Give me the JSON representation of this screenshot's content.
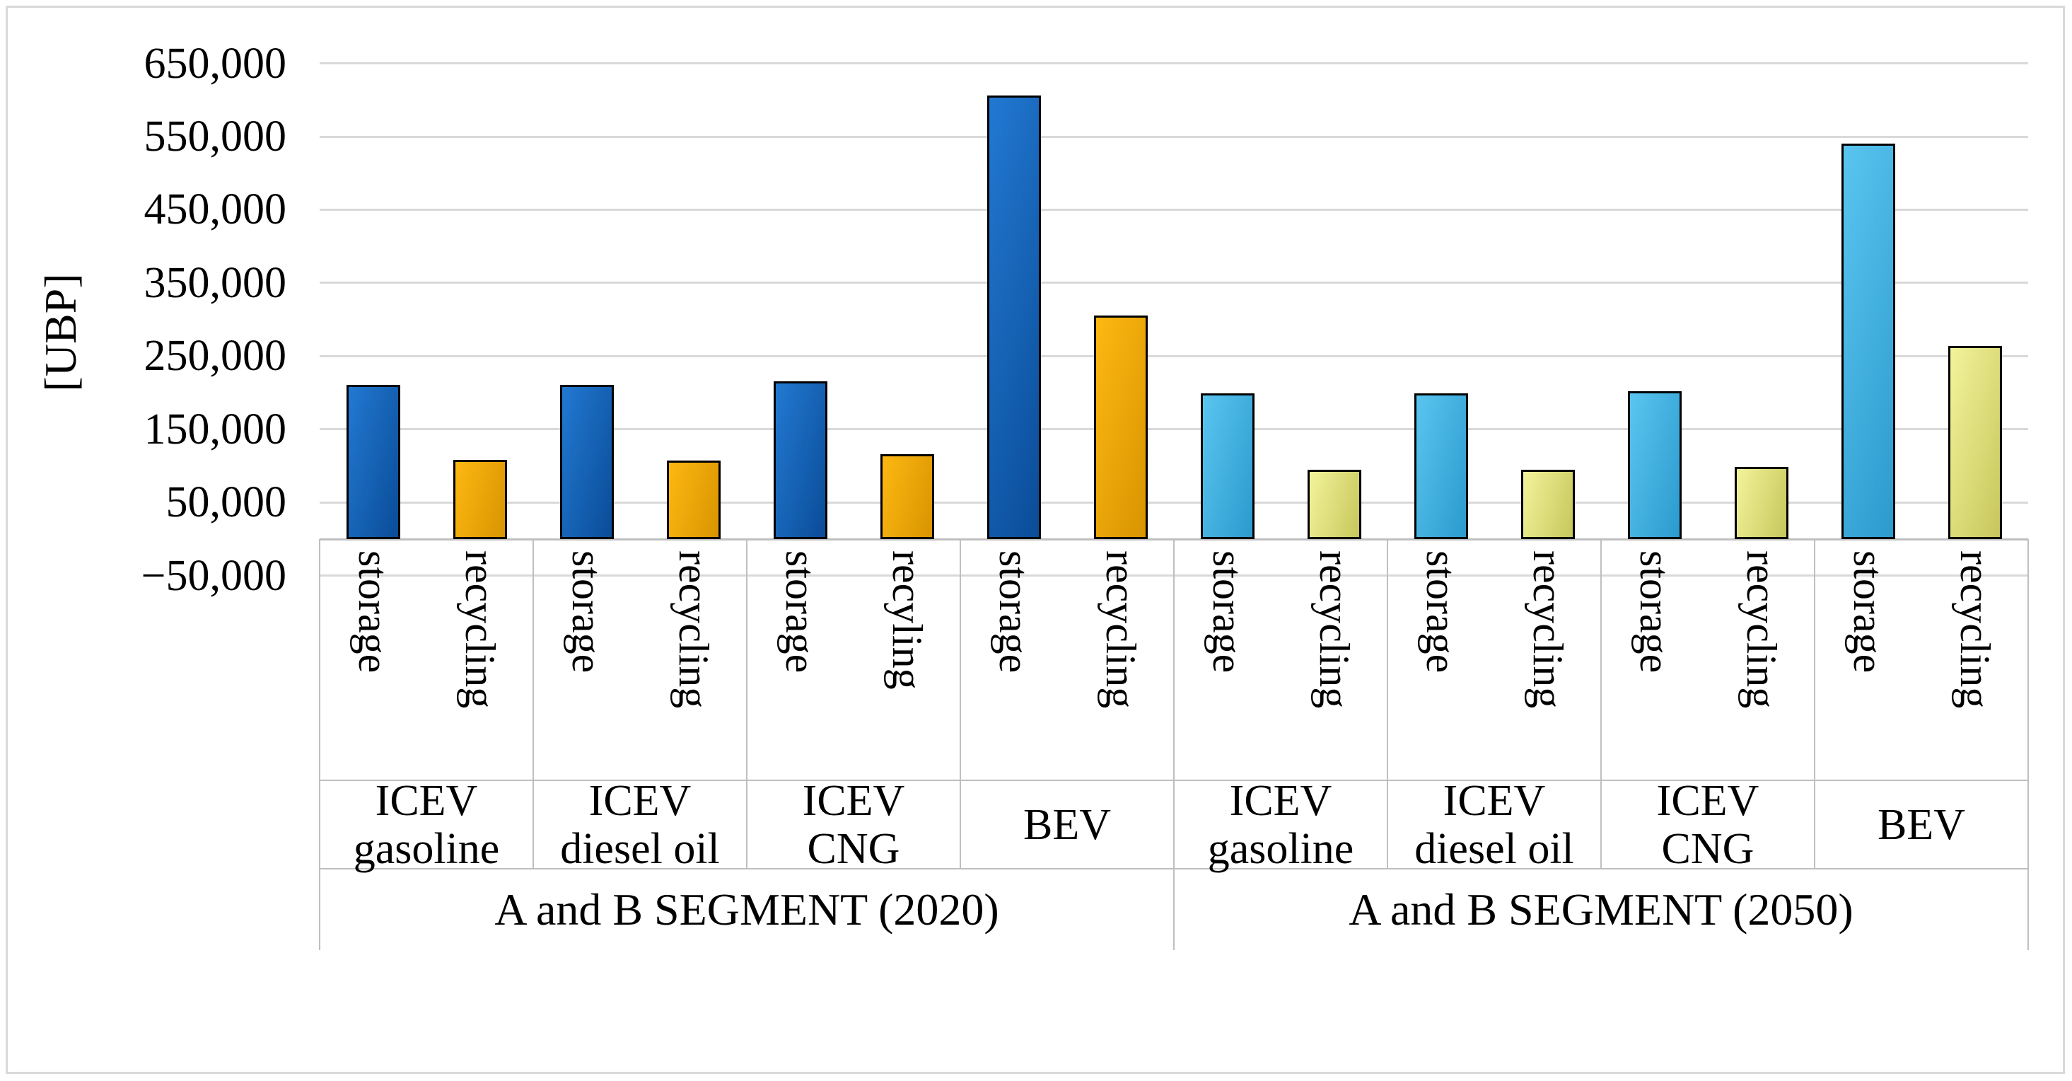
{
  "figure": {
    "background": "#FFFFFF",
    "border_color": "#D9D9D9"
  },
  "chart_data": {
    "type": "bar",
    "title": "",
    "xlabel": "",
    "ylabel": "[UBP]",
    "ylim": [
      -50000,
      650000
    ],
    "ytick_step": 100000,
    "yticks": [
      "650,000",
      "550,000",
      "450,000",
      "350,000",
      "250,000",
      "150,000",
      "50,000",
      "−50,000"
    ],
    "grid": true,
    "legend": "none",
    "gridline_color": "#D9D9D9",
    "axis_line_color": "#BFBFBF",
    "bar_border_color": "#000000",
    "series_colors": {
      "storage-2020": {
        "light": "#2279D2",
        "dark": "#0A4C98"
      },
      "recycling-2020": {
        "light": "#FDB812",
        "dark": "#D99400"
      },
      "storage-2050": {
        "light": "#5AC5F0",
        "dark": "#2B9ACD"
      },
      "recycling-2050": {
        "light": "#F3F39B",
        "dark": "#C7C75C"
      }
    },
    "segments": [
      {
        "label": "A and B SEGMENT (2020)",
        "groups": [
          {
            "label_lines": [
              "ICEV",
              "gasoline"
            ],
            "bars": [
              {
                "category": "storage",
                "series": "storage-2020",
                "value": 211000
              },
              {
                "category": "recycling",
                "series": "recycling-2020",
                "value": 108000
              }
            ]
          },
          {
            "label_lines": [
              "ICEV",
              "diesel oil"
            ],
            "bars": [
              {
                "category": "storage",
                "series": "storage-2020",
                "value": 211000
              },
              {
                "category": "recycling",
                "series": "recycling-2020",
                "value": 107000
              }
            ]
          },
          {
            "label_lines": [
              "ICEV",
              "CNG"
            ],
            "bars": [
              {
                "category": "storage",
                "series": "storage-2020",
                "value": 216000
              },
              {
                "category": "recyling",
                "series": "recycling-2020",
                "value": 116000
              }
            ]
          },
          {
            "label_lines": [
              "BEV"
            ],
            "bars": [
              {
                "category": "storage",
                "series": "storage-2020",
                "value": 606000
              },
              {
                "category": "recycling",
                "series": "recycling-2020",
                "value": 305000
              }
            ]
          }
        ]
      },
      {
        "label": "A and B SEGMENT (2050)",
        "groups": [
          {
            "label_lines": [
              "ICEV",
              "gasoline"
            ],
            "bars": [
              {
                "category": "storage",
                "series": "storage-2050",
                "value": 199000
              },
              {
                "category": "recycling",
                "series": "recycling-2050",
                "value": 95000
              }
            ]
          },
          {
            "label_lines": [
              "ICEV",
              "diesel oil"
            ],
            "bars": [
              {
                "category": "storage",
                "series": "storage-2050",
                "value": 199000
              },
              {
                "category": "recycling",
                "series": "recycling-2050",
                "value": 95000
              }
            ]
          },
          {
            "label_lines": [
              "ICEV",
              "CNG"
            ],
            "bars": [
              {
                "category": "storage",
                "series": "storage-2050",
                "value": 202000
              },
              {
                "category": "recycling",
                "series": "recycling-2050",
                "value": 99000
              }
            ]
          },
          {
            "label_lines": [
              "BEV"
            ],
            "bars": [
              {
                "category": "storage",
                "series": "storage-2050",
                "value": 540000
              },
              {
                "category": "recycling",
                "series": "recycling-2050",
                "value": 264000
              }
            ]
          }
        ]
      }
    ]
  }
}
